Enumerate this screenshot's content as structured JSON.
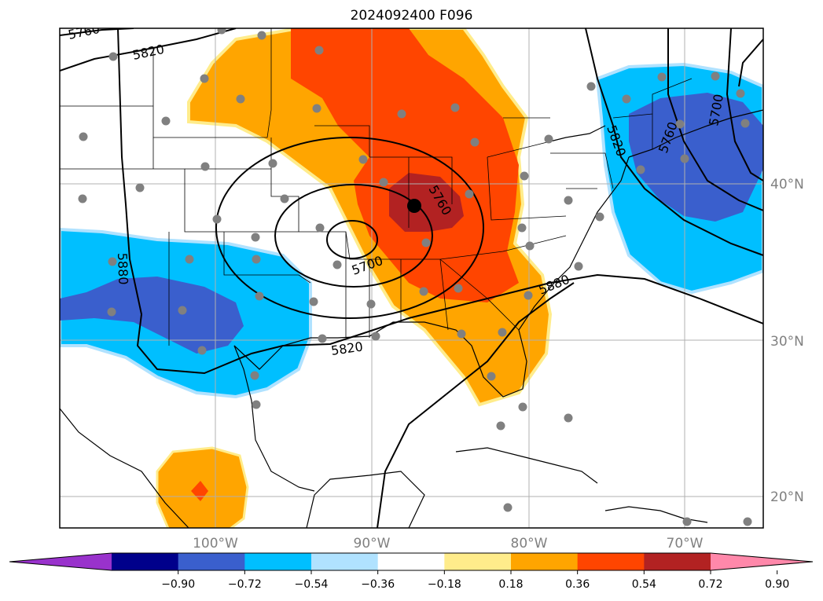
{
  "title": "2024092400 F096",
  "map": {
    "lat_labels": [
      "40°N",
      "30°N",
      "20°N"
    ],
    "lon_labels": [
      "100°W",
      "90°W",
      "80°W",
      "70°W"
    ],
    "contour_labels": [
      "5760",
      "5820",
      "5880",
      "5700",
      "5760",
      "5820",
      "5880",
      "5820",
      "5760",
      "5700"
    ]
  },
  "colorbar": {
    "colors": [
      "#9932cc",
      "#00008b",
      "#3a5fcd",
      "#00bfff",
      "#b0e2ff",
      "#ffffff",
      "#ffec8b",
      "#ffa500",
      "#ff4500",
      "#b22222",
      "#ff88aa"
    ],
    "ticks": [
      "−0.90",
      "−0.72",
      "−0.54",
      "−0.36",
      "−0.18",
      "0.18",
      "0.36",
      "0.54",
      "0.72",
      "0.90"
    ]
  }
}
